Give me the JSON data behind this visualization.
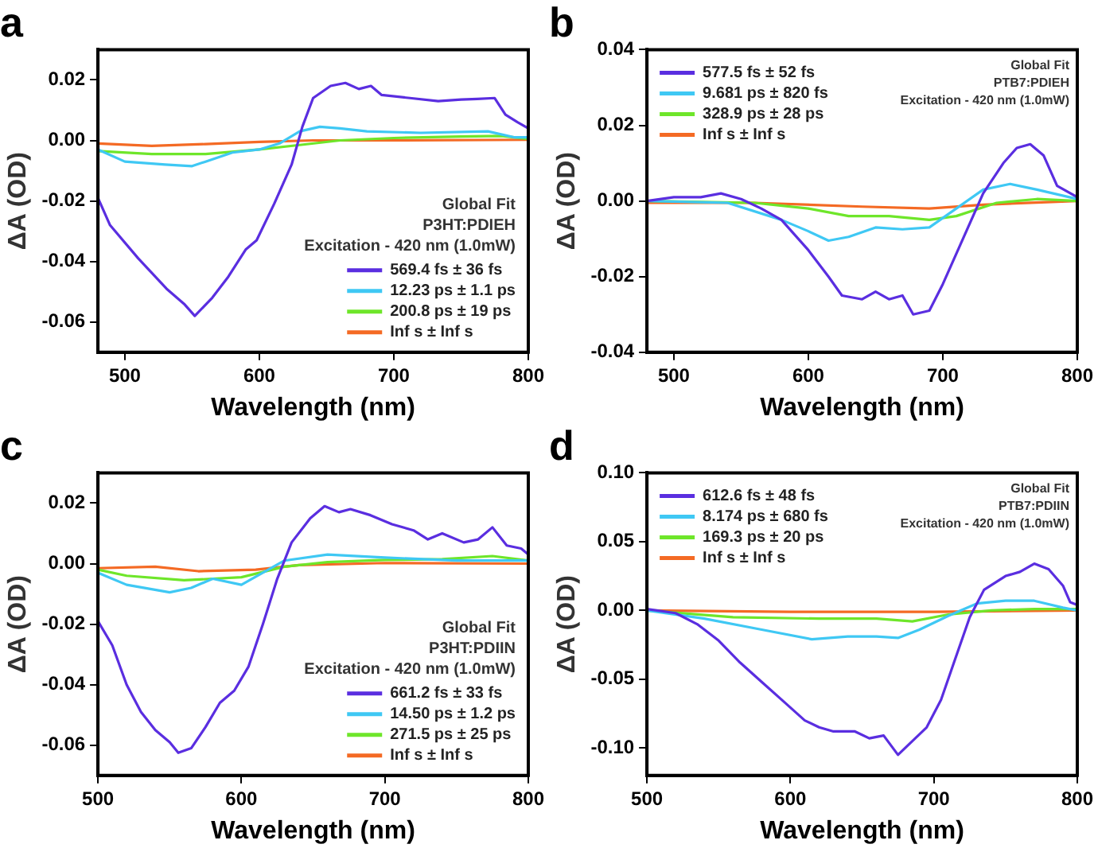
{
  "chart_data": [
    {
      "type": "line",
      "title": "a",
      "xlabel": "Wavelength (nm)",
      "ylabel": "ΔA (OD)",
      "xlim": [
        480,
        800
      ],
      "xticks": [
        500,
        600,
        700,
        800
      ],
      "ylim": [
        -0.07,
        0.03
      ],
      "yticks": [
        -0.06,
        -0.04,
        -0.02,
        {
          "value": 0,
          "label": "0.00"
        },
        0.02
      ],
      "legend": "bottom right",
      "annotations": [
        "Global Fit",
        "P3HT:PDIEH",
        "Excitation - 420 nm (1.0mW)"
      ],
      "series": [
        {
          "name": "569.4 fs ± 36 fs",
          "color": "#5a2ee0",
          "x": [
            480,
            489,
            510,
            531,
            544,
            552,
            565,
            577,
            590,
            598,
            611,
            624,
            632,
            640,
            653,
            664,
            674,
            683,
            691,
            712,
            733,
            750,
            762,
            775,
            783,
            792,
            800
          ],
          "values": [
            -0.019,
            -0.028,
            -0.039,
            -0.049,
            -0.054,
            -0.058,
            -0.052,
            -0.045,
            -0.036,
            -0.033,
            -0.021,
            -0.008,
            0.0045,
            0.014,
            0.018,
            0.019,
            0.017,
            0.018,
            0.015,
            0.014,
            0.013,
            0.0135,
            0.0137,
            0.014,
            0.0085,
            0.006,
            0.004
          ]
        },
        {
          "name": "12.23 ps ± 1.1 ps",
          "color": "#3fc8f4",
          "x": [
            480,
            500,
            530,
            550,
            560,
            580,
            600,
            615,
            630,
            645,
            660,
            680,
            720,
            770,
            790,
            800
          ],
          "values": [
            -0.003,
            -0.007,
            -0.008,
            -0.0085,
            -0.007,
            -0.004,
            -0.003,
            -0.001,
            0.003,
            0.0045,
            0.004,
            0.003,
            0.0025,
            0.003,
            0.001,
            0.001
          ]
        },
        {
          "name": "200.8 ps ± 19 ps",
          "color": "#6ee62a",
          "x": [
            480,
            520,
            560,
            600,
            630,
            660,
            700,
            750,
            780,
            800
          ],
          "values": [
            -0.0035,
            -0.0045,
            -0.0045,
            -0.003,
            -0.0015,
            0,
            0.0008,
            0.0013,
            0.0015,
            0.0005
          ]
        },
        {
          "name": "Inf s ± Inf s",
          "color": "#f46a24",
          "x": [
            480,
            520,
            560,
            600,
            640,
            700,
            800
          ],
          "values": [
            -0.001,
            -0.0018,
            -0.0012,
            -0.0005,
            0,
            0,
            0.0002
          ]
        }
      ]
    },
    {
      "type": "line",
      "title": "b",
      "xlabel": "Wavelength (nm)",
      "ylabel": "ΔA (OD)",
      "xlim": [
        480,
        800
      ],
      "xticks": [
        500,
        600,
        700,
        800
      ],
      "ylim": [
        -0.04,
        0.04
      ],
      "yticks": [
        -0.04,
        -0.02,
        {
          "value": 0,
          "label": "0.00"
        },
        0.02,
        0.04
      ],
      "legend": "top left",
      "annotations": [
        "Global Fit",
        "PTB7:PDIEH",
        "Excitation - 420 nm (1.0mW)"
      ],
      "series": [
        {
          "name": "577.5 fs ± 52 fs",
          "color": "#5a2ee0",
          "x": [
            480,
            500,
            520,
            535,
            550,
            565,
            580,
            600,
            615,
            625,
            640,
            650,
            660,
            670,
            678,
            690,
            700,
            715,
            730,
            745,
            755,
            765,
            775,
            785,
            800
          ],
          "values": [
            0,
            0.001,
            0.001,
            0.002,
            0.0005,
            -0.002,
            -0.005,
            -0.013,
            -0.02,
            -0.025,
            -0.026,
            -0.024,
            -0.026,
            -0.025,
            -0.03,
            -0.029,
            -0.022,
            -0.01,
            0.002,
            0.01,
            0.014,
            0.015,
            0.012,
            0.004,
            0.001
          ]
        },
        {
          "name": "9.681 ps ± 820 fs",
          "color": "#3fc8f4",
          "x": [
            480,
            540,
            580,
            600,
            615,
            630,
            650,
            670,
            690,
            710,
            730,
            750,
            770,
            800
          ],
          "values": [
            0,
            -0.0005,
            -0.005,
            -0.008,
            -0.0105,
            -0.0095,
            -0.007,
            -0.0075,
            -0.007,
            -0.002,
            0.003,
            0.0045,
            0.003,
            0.0005
          ]
        },
        {
          "name": "328.9 ps ± 28 ps",
          "color": "#6ee62a",
          "x": [
            480,
            560,
            600,
            630,
            660,
            690,
            710,
            740,
            770,
            800
          ],
          "values": [
            0,
            -0.0005,
            -0.002,
            -0.004,
            -0.004,
            -0.005,
            -0.004,
            -0.0005,
            0.0005,
            0
          ]
        },
        {
          "name": "Inf s ± Inf s",
          "color": "#f46a24",
          "x": [
            480,
            560,
            640,
            690,
            730,
            800
          ],
          "values": [
            -0.0005,
            -0.0005,
            -0.0015,
            -0.002,
            -0.001,
            0
          ]
        }
      ]
    },
    {
      "type": "line",
      "title": "c",
      "xlabel": "Wavelength (nm)",
      "ylabel": "ΔA (OD)",
      "xlim": [
        500,
        800
      ],
      "xticks": [
        500,
        600,
        700,
        800
      ],
      "ylim": [
        -0.07,
        0.03
      ],
      "yticks": [
        -0.06,
        -0.04,
        -0.02,
        {
          "value": 0,
          "label": "0.00"
        },
        0.02
      ],
      "legend": "bottom right",
      "annotations": [
        "Global Fit",
        "P3HT:PDIIN",
        "Excitation - 420 nm (1.0mW)"
      ],
      "series": [
        {
          "name": "661.2 fs ± 33 fs",
          "color": "#5a2ee0",
          "x": [
            500,
            510,
            520,
            530,
            540,
            550,
            556,
            565,
            575,
            585,
            595,
            605,
            615,
            625,
            635,
            648,
            658,
            668,
            676,
            690,
            705,
            720,
            730,
            740,
            755,
            765,
            775,
            785,
            795,
            800
          ],
          "values": [
            -0.019,
            -0.027,
            -0.04,
            -0.049,
            -0.055,
            -0.059,
            -0.0625,
            -0.061,
            -0.054,
            -0.046,
            -0.042,
            -0.034,
            -0.02,
            -0.005,
            0.007,
            0.015,
            0.019,
            0.017,
            0.018,
            0.016,
            0.013,
            0.011,
            0.008,
            0.01,
            0.007,
            0.008,
            0.012,
            0.006,
            0.005,
            0.003
          ]
        },
        {
          "name": "14.50 ps ± 1.2 ps",
          "color": "#3fc8f4",
          "x": [
            500,
            520,
            550,
            565,
            580,
            600,
            615,
            630,
            660,
            700,
            750,
            800
          ],
          "values": [
            -0.003,
            -0.007,
            -0.0095,
            -0.008,
            -0.005,
            -0.007,
            -0.003,
            0.001,
            0.003,
            0.002,
            0.001,
            0.001
          ]
        },
        {
          "name": "271.5 ps ± 25 ps",
          "color": "#6ee62a",
          "x": [
            500,
            520,
            560,
            600,
            630,
            660,
            700,
            740,
            775,
            800
          ],
          "values": [
            -0.002,
            -0.004,
            -0.0055,
            -0.0045,
            -0.001,
            0.0005,
            0.0012,
            0.0015,
            0.0025,
            0.001
          ]
        },
        {
          "name": "Inf s ± Inf s",
          "color": "#f46a24",
          "x": [
            500,
            540,
            570,
            610,
            640,
            700,
            800
          ],
          "values": [
            -0.0015,
            -0.001,
            -0.0025,
            -0.002,
            -0.0005,
            0.0002,
            0
          ]
        }
      ]
    },
    {
      "type": "line",
      "title": "d",
      "xlabel": "Wavelength (nm)",
      "ylabel": "ΔA (OD)",
      "xlim": [
        500,
        800
      ],
      "xticks": [
        500,
        600,
        700,
        800
      ],
      "ylim": [
        -0.12,
        0.1
      ],
      "yticks": [
        {
          "value": -0.1,
          "label": "-0.10"
        },
        -0.05,
        {
          "value": 0,
          "label": "0.00"
        },
        0.05,
        {
          "value": 0.1,
          "label": "0.10"
        }
      ],
      "legend": "top left",
      "annotations": [
        "Global Fit",
        "PTB7:PDIIN",
        "Excitation - 420 nm (1.0mW)"
      ],
      "series": [
        {
          "name": "612.6 fs ± 48 fs",
          "color": "#5a2ee0",
          "x": [
            500,
            520,
            535,
            550,
            565,
            580,
            595,
            610,
            620,
            630,
            645,
            655,
            665,
            675,
            685,
            695,
            705,
            715,
            725,
            735,
            750,
            760,
            770,
            780,
            790,
            795,
            800
          ],
          "values": [
            0.001,
            -0.002,
            -0.01,
            -0.022,
            -0.038,
            -0.052,
            -0.066,
            -0.08,
            -0.085,
            -0.088,
            -0.088,
            -0.093,
            -0.091,
            -0.105,
            -0.095,
            -0.085,
            -0.065,
            -0.035,
            -0.005,
            0.015,
            0.025,
            0.028,
            0.034,
            0.03,
            0.018,
            0.006,
            0.004
          ]
        },
        {
          "name": "8.174 ps ± 680 fs",
          "color": "#3fc8f4",
          "x": [
            500,
            540,
            580,
            615,
            640,
            660,
            675,
            690,
            710,
            730,
            750,
            770,
            790,
            800
          ],
          "values": [
            0,
            -0.006,
            -0.014,
            -0.021,
            -0.019,
            -0.019,
            -0.02,
            -0.014,
            -0.004,
            0.005,
            0.007,
            0.007,
            0.002,
            0
          ]
        },
        {
          "name": "169.3 ps ± 20 ps",
          "color": "#6ee62a",
          "x": [
            500,
            560,
            620,
            660,
            685,
            710,
            740,
            770,
            800
          ],
          "values": [
            0,
            -0.005,
            -0.006,
            -0.006,
            -0.008,
            -0.003,
            0,
            0.001,
            0.001
          ]
        },
        {
          "name": "Inf s ± Inf s",
          "color": "#f46a24",
          "x": [
            500,
            600,
            700,
            800
          ],
          "values": [
            0,
            -0.001,
            -0.001,
            0
          ]
        }
      ]
    }
  ]
}
